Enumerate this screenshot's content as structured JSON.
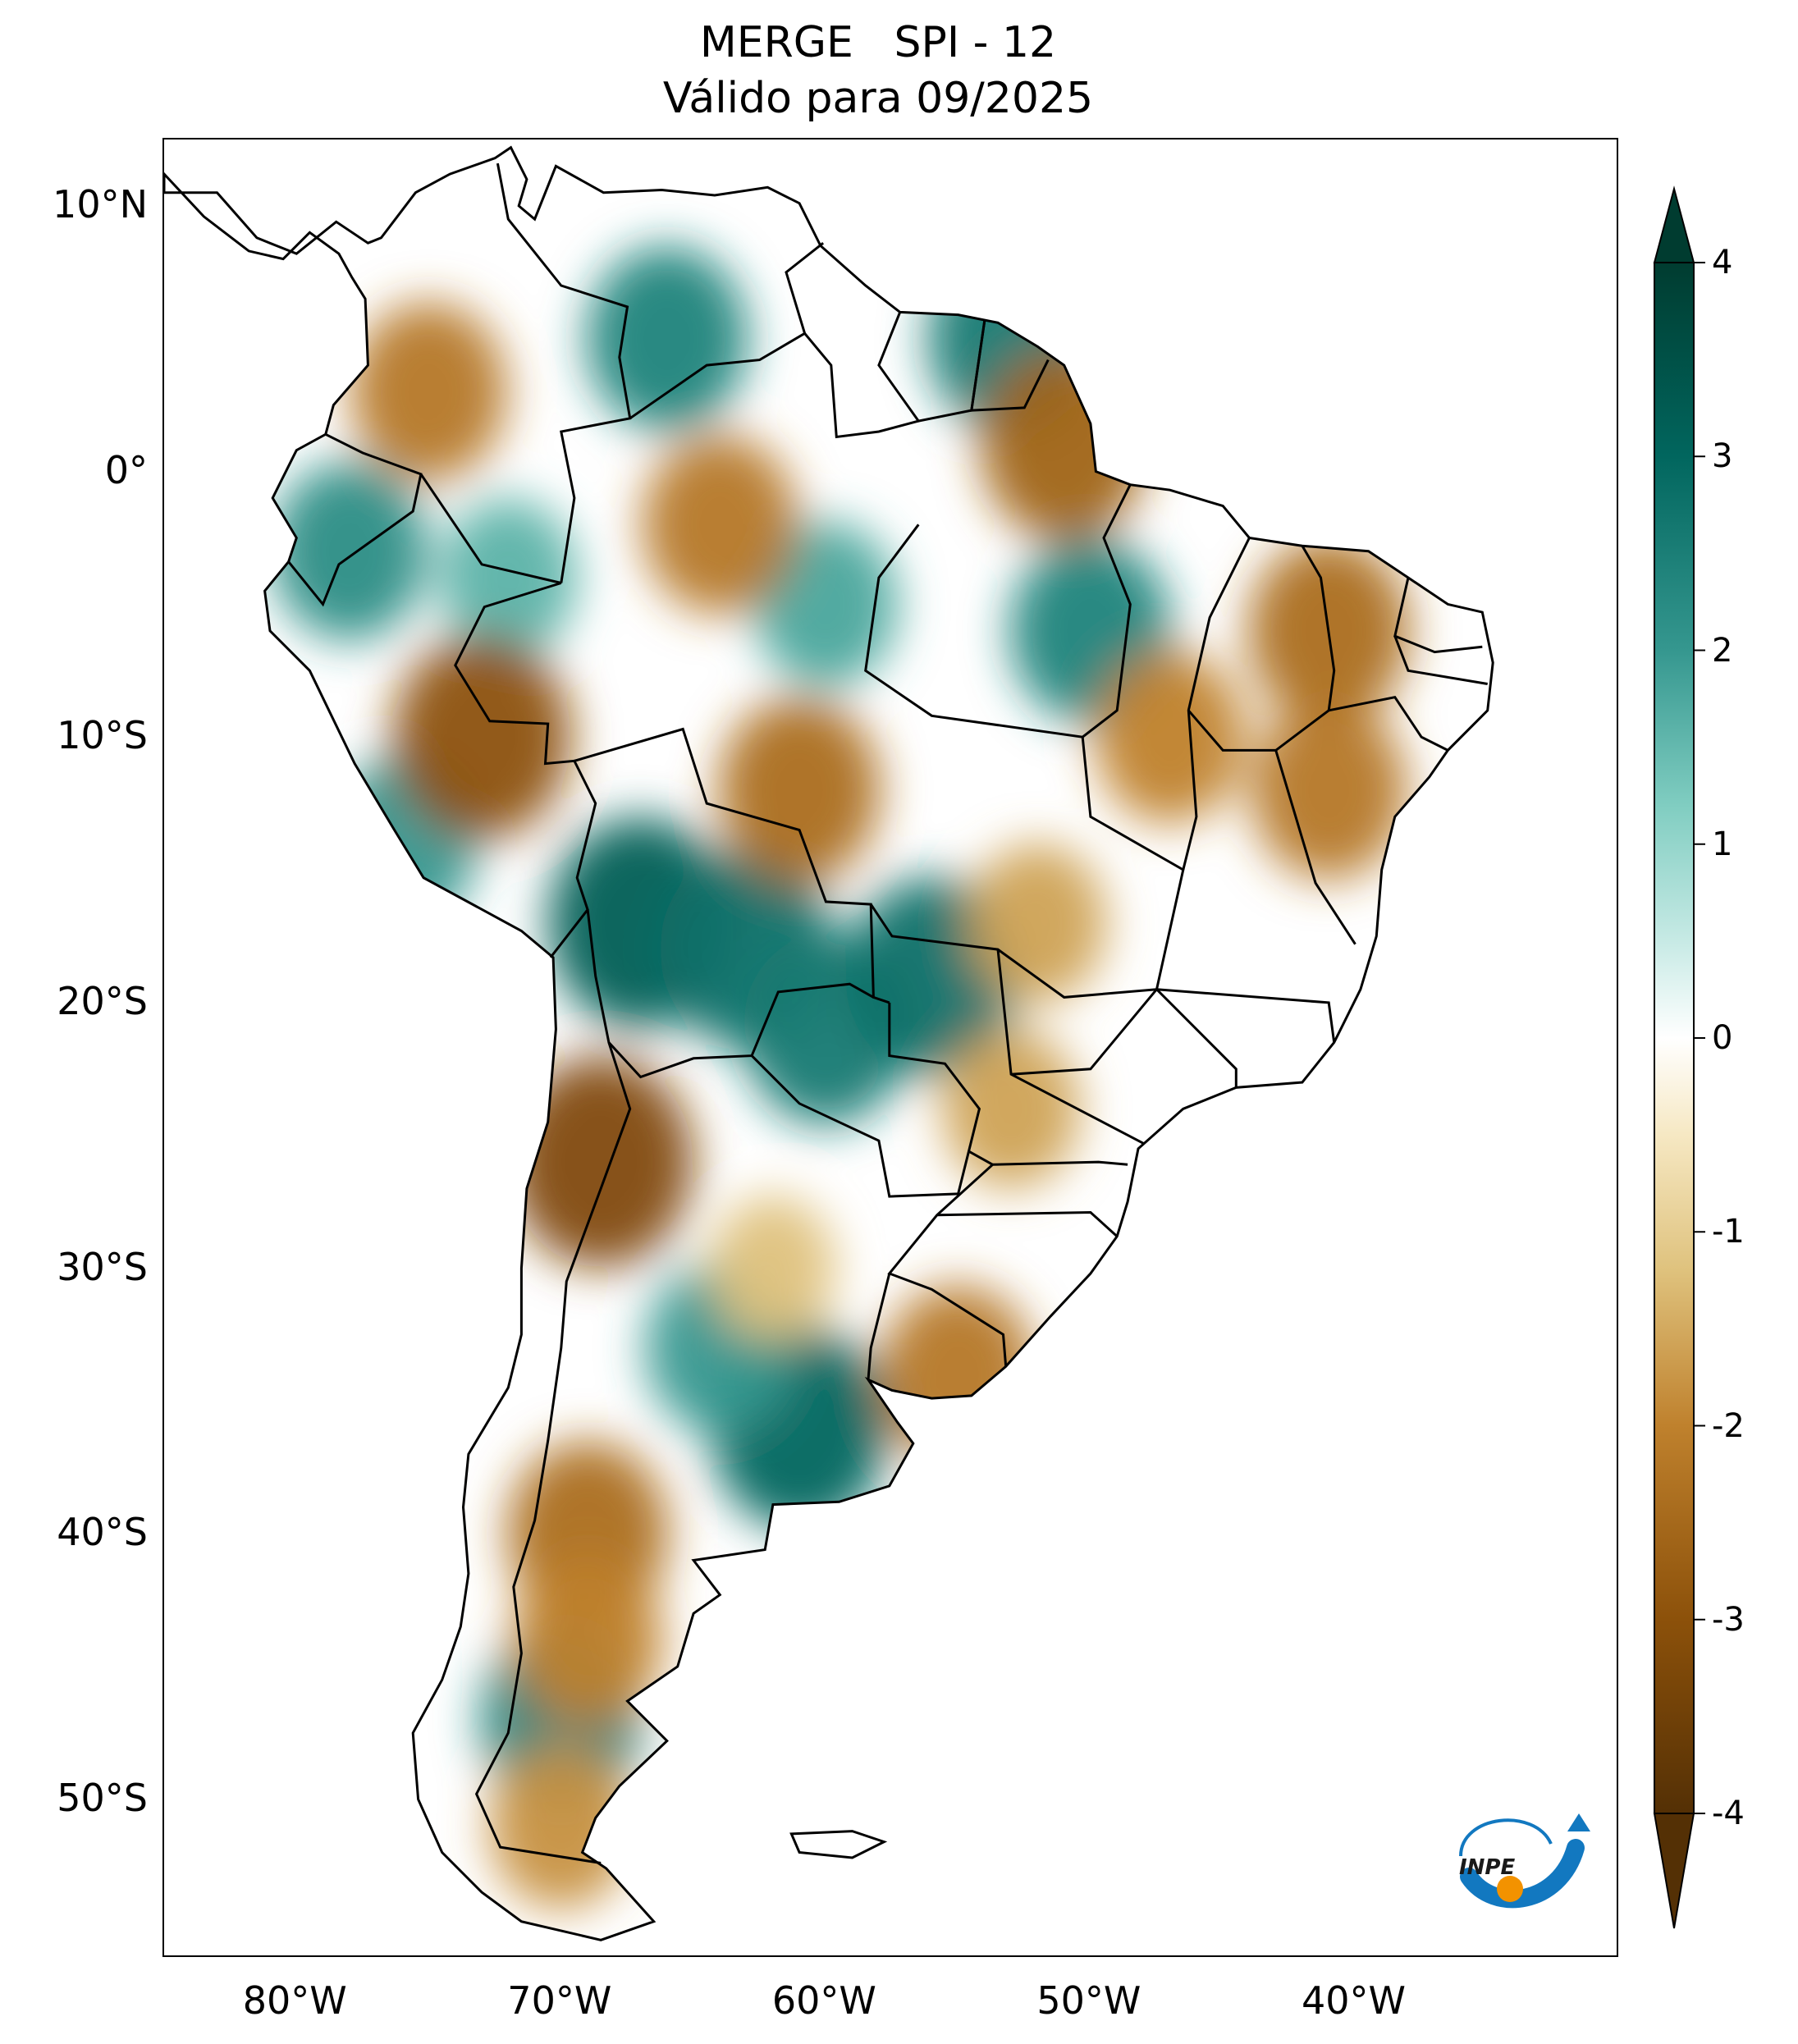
{
  "title": {
    "line1": "MERGE   SPI - 12",
    "line2": "Válido para 09/2025"
  },
  "map": {
    "projection": "PlateCarree",
    "lon_range": [
      -85,
      -30
    ],
    "lat_range": [
      -56,
      12.5
    ],
    "lat_ticks": [
      {
        "value": 10,
        "label": "10°N"
      },
      {
        "value": 0,
        "label": "0°"
      },
      {
        "value": -10,
        "label": "10°S"
      },
      {
        "value": -20,
        "label": "20°S"
      },
      {
        "value": -30,
        "label": "30°S"
      },
      {
        "value": -40,
        "label": "40°S"
      },
      {
        "value": -50,
        "label": "50°S"
      }
    ],
    "lon_ticks": [
      {
        "value": -80,
        "label": "80°W"
      },
      {
        "value": -70,
        "label": "70°W"
      },
      {
        "value": -60,
        "label": "60°W"
      },
      {
        "value": -50,
        "label": "50°W"
      },
      {
        "value": -40,
        "label": "40°W"
      }
    ],
    "anomaly_regions": [
      {
        "lon": -67,
        "lat": -17,
        "value": 3.2
      },
      {
        "lon": -63,
        "lat": -18,
        "value": 2.8
      },
      {
        "lon": -60,
        "lat": -21,
        "value": 2.6
      },
      {
        "lon": -61,
        "lat": -36,
        "value": 3.0
      },
      {
        "lon": -64,
        "lat": -33,
        "value": 2.0
      },
      {
        "lon": -66,
        "lat": 5,
        "value": 2.4
      },
      {
        "lon": -53,
        "lat": 5,
        "value": 2.6
      },
      {
        "lon": -50,
        "lat": -6,
        "value": 2.4
      },
      {
        "lon": -78,
        "lat": -3,
        "value": 2.2
      },
      {
        "lon": -76,
        "lat": -14,
        "value": 2.0
      },
      {
        "lon": -56,
        "lat": -19,
        "value": 2.8
      },
      {
        "lon": -70,
        "lat": -47,
        "value": 2.4
      },
      {
        "lon": -72,
        "lat": -4,
        "value": 1.6
      },
      {
        "lon": -60,
        "lat": -5,
        "value": 1.8
      },
      {
        "lon": -75,
        "lat": 3,
        "value": -2.2
      },
      {
        "lon": -64,
        "lat": -2,
        "value": -2.2
      },
      {
        "lon": -73,
        "lat": -10,
        "value": -3.0
      },
      {
        "lon": -61,
        "lat": -12,
        "value": -2.4
      },
      {
        "lon": -51,
        "lat": 1,
        "value": -2.6
      },
      {
        "lon": -41,
        "lat": -6,
        "value": -2.4
      },
      {
        "lon": -47,
        "lat": -10,
        "value": -2.0
      },
      {
        "lon": -41,
        "lat": -12,
        "value": -2.2
      },
      {
        "lon": -52,
        "lat": -17,
        "value": -1.6
      },
      {
        "lon": -53,
        "lat": -24,
        "value": -1.6
      },
      {
        "lon": -68.5,
        "lat": -26,
        "value": -3.2
      },
      {
        "lon": -69,
        "lat": -40,
        "value": -2.4
      },
      {
        "lon": -69,
        "lat": -44,
        "value": -2.0
      },
      {
        "lon": -55,
        "lat": -34,
        "value": -2.2
      },
      {
        "lon": -70,
        "lat": -51,
        "value": -1.8
      },
      {
        "lon": -62,
        "lat": -30,
        "value": -1.2
      }
    ]
  },
  "colorbar": {
    "min": -4,
    "max": 4,
    "ticks": [
      "-4",
      "-3",
      "-2",
      "-1",
      "0",
      "1",
      "2",
      "3",
      "4"
    ],
    "extend": "both",
    "colormap": "BrBG",
    "stops": [
      {
        "v": -4,
        "color": "#543005"
      },
      {
        "v": -3,
        "color": "#8c510a"
      },
      {
        "v": -2,
        "color": "#bf812d"
      },
      {
        "v": -1.2,
        "color": "#dfc27d"
      },
      {
        "v": -0.5,
        "color": "#f6e8c3"
      },
      {
        "v": 0,
        "color": "#ffffff"
      },
      {
        "v": 0.5,
        "color": "#c7eae5"
      },
      {
        "v": 1.2,
        "color": "#80cdc1"
      },
      {
        "v": 2,
        "color": "#35978f"
      },
      {
        "v": 3,
        "color": "#01665e"
      },
      {
        "v": 4,
        "color": "#003c30"
      }
    ]
  },
  "logo": {
    "text": "INPE",
    "colors": {
      "arc": "#1278c0",
      "dot": "#f39200"
    }
  }
}
